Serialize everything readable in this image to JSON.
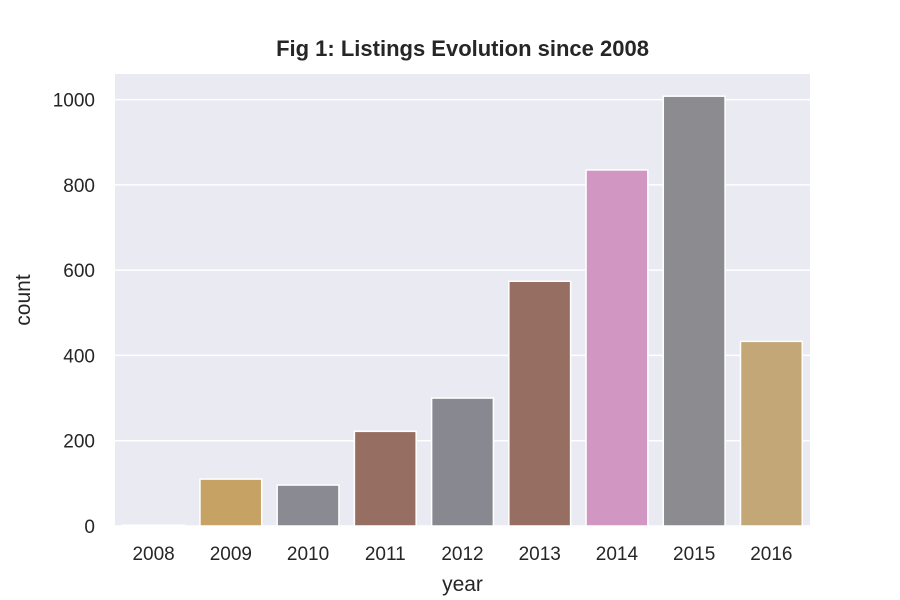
{
  "chart_data": {
    "type": "bar",
    "title": "Fig 1: Listings Evolution since 2008",
    "xlabel": "year",
    "ylabel": "count",
    "categories": [
      "2008",
      "2009",
      "2010",
      "2011",
      "2012",
      "2013",
      "2014",
      "2015",
      "2016"
    ],
    "values": [
      2,
      110,
      96,
      222,
      300,
      574,
      835,
      1008,
      433
    ],
    "bar_colors": [
      "#8c8c8c",
      "#c6a265",
      "#8a8a92",
      "#976f62",
      "#888890",
      "#976f62",
      "#d196c1",
      "#8c8c90",
      "#c4a776"
    ],
    "ylim": [
      0,
      1060
    ],
    "yticks": [
      0,
      200,
      400,
      600,
      800,
      1000
    ],
    "grid": true,
    "background_color": "#eaeaf2",
    "grid_color": "#ffffff",
    "legend": "none"
  }
}
